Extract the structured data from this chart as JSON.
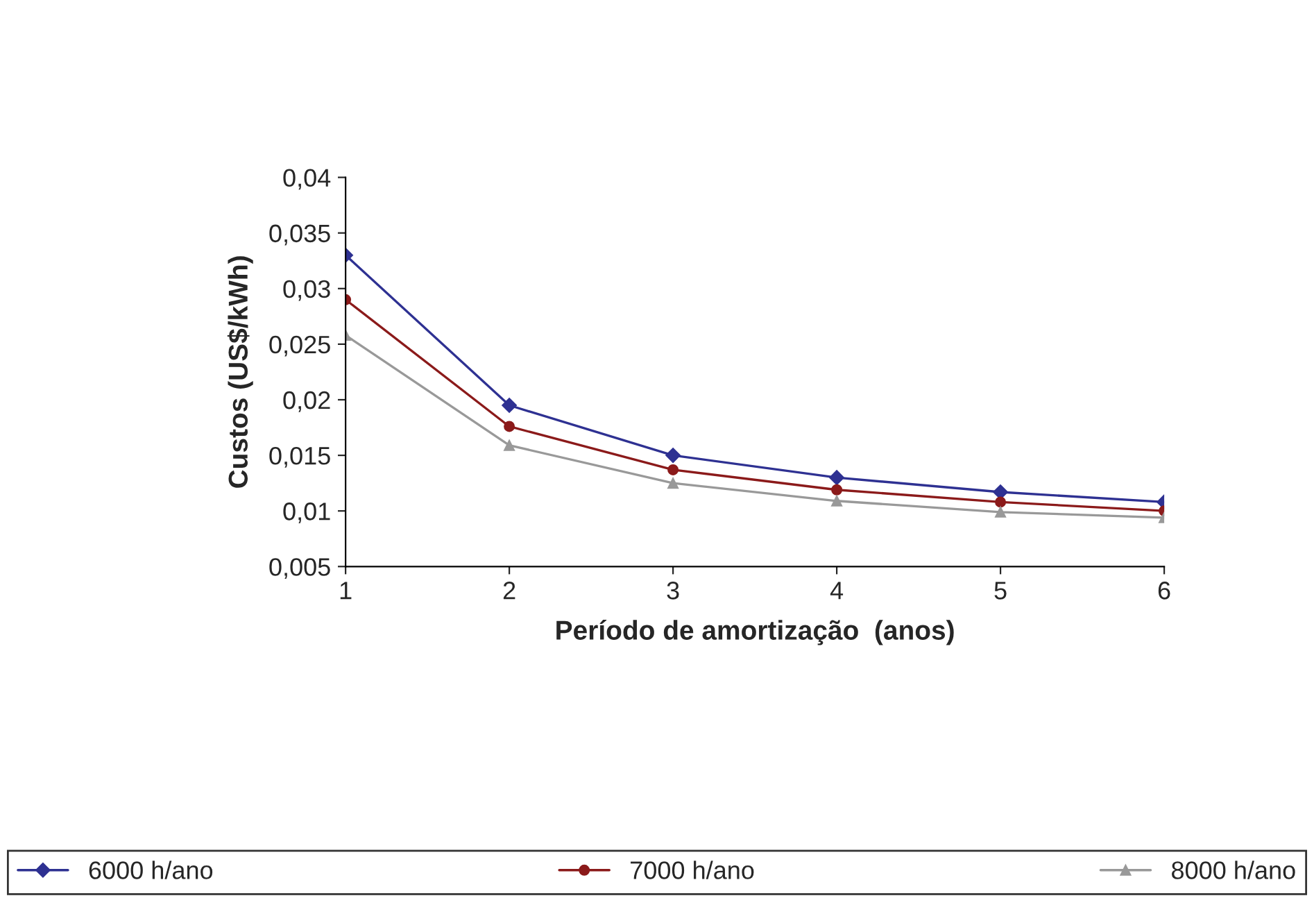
{
  "chart_data": {
    "type": "line",
    "xlabel": "Período de amortização  (anos)",
    "ylabel": "Custos (US$/kWh)",
    "x": [
      1,
      2,
      3,
      4,
      5,
      6
    ],
    "series": [
      {
        "name": "6000 h/ano",
        "color": "#2e3192",
        "marker": "diamond",
        "values": [
          0.033,
          0.0195,
          0.015,
          0.013,
          0.0117,
          0.0108
        ]
      },
      {
        "name": "7000 h/ano",
        "color": "#8b1a1a",
        "marker": "circle",
        "values": [
          0.029,
          0.0176,
          0.0137,
          0.0119,
          0.0108,
          0.01
        ]
      },
      {
        "name": "8000 h/ano",
        "color": "#999999",
        "marker": "triangle",
        "values": [
          0.0258,
          0.0159,
          0.0125,
          0.0109,
          0.0099,
          0.0094
        ]
      }
    ],
    "xlim": [
      1,
      6
    ],
    "xticks": [
      1,
      2,
      3,
      4,
      5,
      6
    ],
    "ylim": [
      0.005,
      0.04
    ],
    "yticks": [
      {
        "value": 0.005,
        "label": "0,005"
      },
      {
        "value": 0.01,
        "label": "0,01"
      },
      {
        "value": 0.015,
        "label": "0,015"
      },
      {
        "value": 0.02,
        "label": "0,02"
      },
      {
        "value": 0.025,
        "label": "0,025"
      },
      {
        "value": 0.03,
        "label": "0,03"
      },
      {
        "value": 0.035,
        "label": "0,035"
      },
      {
        "value": 0.04,
        "label": "0,04"
      }
    ],
    "grid": false,
    "legend": "bottom",
    "line_style": "solid"
  }
}
